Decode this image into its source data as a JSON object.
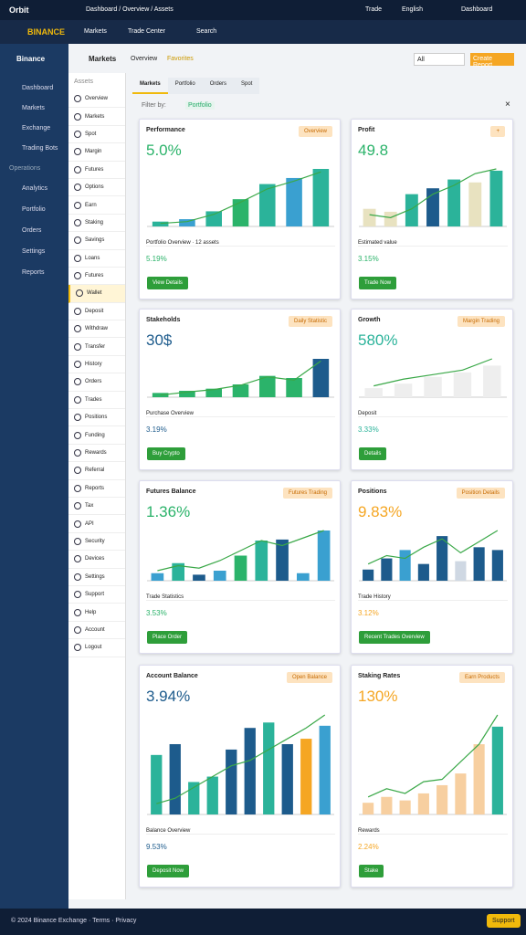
{
  "topbar": {
    "brand": "Orbit",
    "crumbs": "Dashboard / Overview / Assets",
    "user": "Trade",
    "lang": "English",
    "account": "Dashboard"
  },
  "navbar": {
    "logo": "BINANCE",
    "links": [
      "Markets",
      "Trade Center"
    ],
    "search": "Search"
  },
  "sidebar": {
    "title": "Binance",
    "items": [
      "Dashboard",
      "Markets",
      "Exchange",
      "Trading Bots"
    ],
    "section": "Operations",
    "items2": [
      "Analytics",
      "Portfolio",
      "Orders",
      "Settings",
      "Reports"
    ]
  },
  "subnav": {
    "title": "Markets",
    "tabs": [
      "Overview",
      "Favorites"
    ]
  },
  "panel": {
    "heading": "Assets",
    "items": [
      "Overview",
      "Markets",
      "Spot",
      "Margin",
      "Futures",
      "Options",
      "Earn",
      "Staking",
      "Savings",
      "Loans",
      "Futures",
      "Wallet",
      "Deposit",
      "Withdraw",
      "Transfer",
      "History",
      "Orders",
      "Trades",
      "Positions",
      "Funding",
      "Rewards",
      "Referral",
      "Reports",
      "Tax",
      "API",
      "Security",
      "Devices",
      "Settings",
      "Support",
      "Help",
      "Account",
      "Logout"
    ]
  },
  "tabs": [
    "Markets",
    "Portfolio",
    "Orders",
    "Spot"
  ],
  "select": "All",
  "action": "Create Report",
  "filter": "Filter by:",
  "chip": "Portfolio",
  "cards": [
    {
      "title": "Performance",
      "badge": "Overview",
      "value": "5.0%",
      "accent": "#2bb36a",
      "note": "Portfolio Overview · 12 assets",
      "change": "5.19%",
      "button": "View Details",
      "bars": [
        {
          "value": 8,
          "color": "#2bb39a"
        },
        {
          "value": 12,
          "color": "#3aa0d0"
        },
        {
          "value": 25,
          "color": "#2bb39a"
        },
        {
          "value": 45,
          "color": "#2bb36a"
        },
        {
          "value": 70,
          "color": "#2bb39a"
        },
        {
          "value": 80,
          "color": "#3aa0d0"
        },
        {
          "value": 95,
          "color": "#2bb39a"
        }
      ],
      "line": [
        5,
        8,
        20,
        40,
        62,
        75,
        90
      ]
    },
    {
      "title": "Profit",
      "badge": "+",
      "value": "49.8",
      "accent": "#2bb36a",
      "note": "Estimated value",
      "change": "3.15%",
      "button": "Trade Now",
      "bars": [
        {
          "value": 30,
          "color": "#e8e2c0"
        },
        {
          "value": 25,
          "color": "#e8e2c0"
        },
        {
          "value": 55,
          "color": "#2bb39a"
        },
        {
          "value": 65,
          "color": "#1d5b8c"
        },
        {
          "value": 80,
          "color": "#2bb39a"
        },
        {
          "value": 75,
          "color": "#e8e2c0"
        },
        {
          "value": 95,
          "color": "#2bb39a"
        }
      ],
      "line": [
        20,
        15,
        30,
        55,
        70,
        90,
        98
      ]
    },
    {
      "title": "Stakeholds",
      "badge": "Daily Statistic",
      "value": "30$",
      "accent": "#1d5b8c",
      "note": "Purchase Overview",
      "change": "3.19%",
      "button": "Buy Crypto",
      "bars": [
        {
          "value": 10,
          "color": "#2bb36a"
        },
        {
          "value": 15,
          "color": "#2bb36a"
        },
        {
          "value": 20,
          "color": "#2bb36a"
        },
        {
          "value": 30,
          "color": "#2bb36a"
        },
        {
          "value": 50,
          "color": "#2bb36a"
        },
        {
          "value": 45,
          "color": "#2bb36a"
        },
        {
          "value": 90,
          "color": "#1d5b8c"
        }
      ],
      "line": [
        5,
        12,
        18,
        28,
        48,
        40,
        85
      ]
    },
    {
      "title": "Growth",
      "badge": "Margin Trading",
      "value": "580%",
      "accent": "#2bb39a",
      "note": "Deposit",
      "change": "3.33%",
      "button": "Details",
      "bars": [
        {
          "value": 20,
          "color": "#eeeeee"
        },
        {
          "value": 30,
          "color": "#eeeeee"
        },
        {
          "value": 45,
          "color": "#eeeeee"
        },
        {
          "value": 55,
          "color": "#eeeeee"
        },
        {
          "value": 70,
          "color": "#eeeeee"
        }
      ],
      "line": [
        25,
        40,
        50,
        60,
        85
      ]
    },
    {
      "title": "Futures Balance",
      "badge": "Futures Trading",
      "value": "1.36%",
      "accent": "#2bb36a",
      "note": "Trade Statistics",
      "change": "3.53%",
      "button": "Place Order",
      "bars": [
        {
          "value": 15,
          "color": "#3aa0d0"
        },
        {
          "value": 35,
          "color": "#2bb39a"
        },
        {
          "value": 12,
          "color": "#1d5b8c"
        },
        {
          "value": 20,
          "color": "#3aa0d0"
        },
        {
          "value": 50,
          "color": "#2bb36a"
        },
        {
          "value": 80,
          "color": "#2bb39a"
        },
        {
          "value": 82,
          "color": "#1d5b8c"
        },
        {
          "value": 15,
          "color": "#3aa0d0"
        },
        {
          "value": 100,
          "color": "#3aa0d0"
        }
      ],
      "line": [
        20,
        30,
        25,
        40,
        60,
        80,
        70,
        85,
        100
      ]
    },
    {
      "title": "Positions",
      "badge": "Position Details",
      "value": "9.83%",
      "accent": "#f5a623",
      "note": "Trade History",
      "change": "3.12%",
      "button": "Recent Trades Overview",
      "bars": [
        {
          "value": 20,
          "color": "#1d5b8c"
        },
        {
          "value": 40,
          "color": "#1d5b8c"
        },
        {
          "value": 55,
          "color": "#3aa0d0"
        },
        {
          "value": 30,
          "color": "#1d5b8c"
        },
        {
          "value": 80,
          "color": "#1d5b8c"
        },
        {
          "value": 35,
          "color": "#cfd8e3"
        },
        {
          "value": 60,
          "color": "#1d5b8c"
        },
        {
          "value": 55,
          "color": "#1d5b8c"
        }
      ],
      "line": [
        30,
        45,
        40,
        60,
        75,
        50,
        70,
        90
      ]
    },
    {
      "title": "Account Balance",
      "badge": "Open Balance",
      "value": "3.94%",
      "accent": "#1d5b8c",
      "note": "Balance Overview",
      "change": "9.53%",
      "button": "Deposit Now",
      "bars": [
        {
          "value": 55,
          "color": "#2bb39a"
        },
        {
          "value": 65,
          "color": "#1d5b8c"
        },
        {
          "value": 30,
          "color": "#2bb39a"
        },
        {
          "value": 35,
          "color": "#2bb39a"
        },
        {
          "value": 60,
          "color": "#1d5b8c"
        },
        {
          "value": 80,
          "color": "#1d5b8c"
        },
        {
          "value": 85,
          "color": "#2bb39a"
        },
        {
          "value": 65,
          "color": "#1d5b8c"
        },
        {
          "value": 70,
          "color": "#f5a623"
        },
        {
          "value": 82,
          "color": "#3aa0d0"
        }
      ],
      "line": [
        10,
        15,
        25,
        35,
        45,
        50,
        60,
        70,
        80,
        92
      ]
    },
    {
      "title": "Staking Rates",
      "badge": "Earn Products",
      "value": "130%",
      "accent": "#f5a623",
      "note": "Rewards",
      "change": "2.24%",
      "button": "Stake",
      "bars": [
        {
          "value": 10,
          "color": "#f7cfa0"
        },
        {
          "value": 15,
          "color": "#f7cfa0"
        },
        {
          "value": 12,
          "color": "#f7cfa0"
        },
        {
          "value": 18,
          "color": "#f7cfa0"
        },
        {
          "value": 25,
          "color": "#f7cfa0"
        },
        {
          "value": 35,
          "color": "#f7cfa0"
        },
        {
          "value": 60,
          "color": "#f7cfa0"
        },
        {
          "value": 75,
          "color": "#2bb39a"
        }
      ],
      "line": [
        15,
        22,
        18,
        28,
        30,
        45,
        60,
        85
      ]
    }
  ],
  "footer": {
    "text": "© 2024 Binance Exchange · Terms · Privacy",
    "button": "Support"
  }
}
